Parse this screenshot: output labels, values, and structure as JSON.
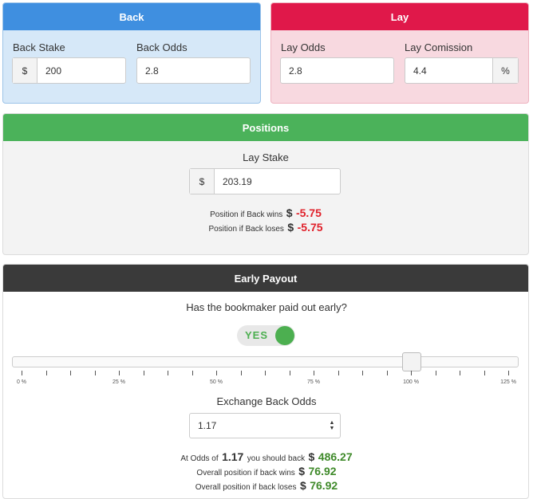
{
  "back": {
    "title": "Back",
    "stake_label": "Back Stake",
    "stake_prefix": "$",
    "stake_value": "200",
    "odds_label": "Back Odds",
    "odds_value": "2.8"
  },
  "lay": {
    "title": "Lay",
    "odds_label": "Lay Odds",
    "odds_value": "2.8",
    "commission_label": "Lay Comission",
    "commission_value": "4.4",
    "commission_suffix": "%"
  },
  "positions": {
    "title": "Positions",
    "stake_label": "Lay Stake",
    "stake_prefix": "$",
    "stake_value": "203.19",
    "back_wins_label": "Position if Back wins",
    "back_wins_currency": "$",
    "back_wins_value": "-5.75",
    "back_loses_label": "Position if Back loses",
    "back_loses_currency": "$",
    "back_loses_value": "-5.75"
  },
  "early": {
    "title": "Early Payout",
    "question": "Has the bookmaker paid out early?",
    "toggle_label": "YES",
    "toggle_on": true,
    "slider_value_percent": 100,
    "slider_ticks": [
      "0 %",
      "25 %",
      "50 %",
      "75 %",
      "100 %",
      "125 %"
    ],
    "exchange_odds_label": "Exchange Back Odds",
    "exchange_odds_value": "1.17",
    "result_prefix": "At Odds of",
    "result_odds": "1.17",
    "result_mid": "you should back",
    "result_currency": "$",
    "result_amount": "486.27",
    "overall_wins_label": "Overall position if back wins",
    "overall_wins_currency": "$",
    "overall_wins_value": "76.92",
    "overall_loses_label": "Overall position if back loses",
    "overall_loses_currency": "$",
    "overall_loses_value": "76.92"
  },
  "colors": {
    "back_head": "#3f8fe0",
    "back_body": "#d6e8f8",
    "lay_head": "#e0184a",
    "lay_body": "#f8d9e0",
    "positions_head": "#4bb25a",
    "early_head": "#3a3a3a",
    "toggle_on": "#4caf50"
  }
}
